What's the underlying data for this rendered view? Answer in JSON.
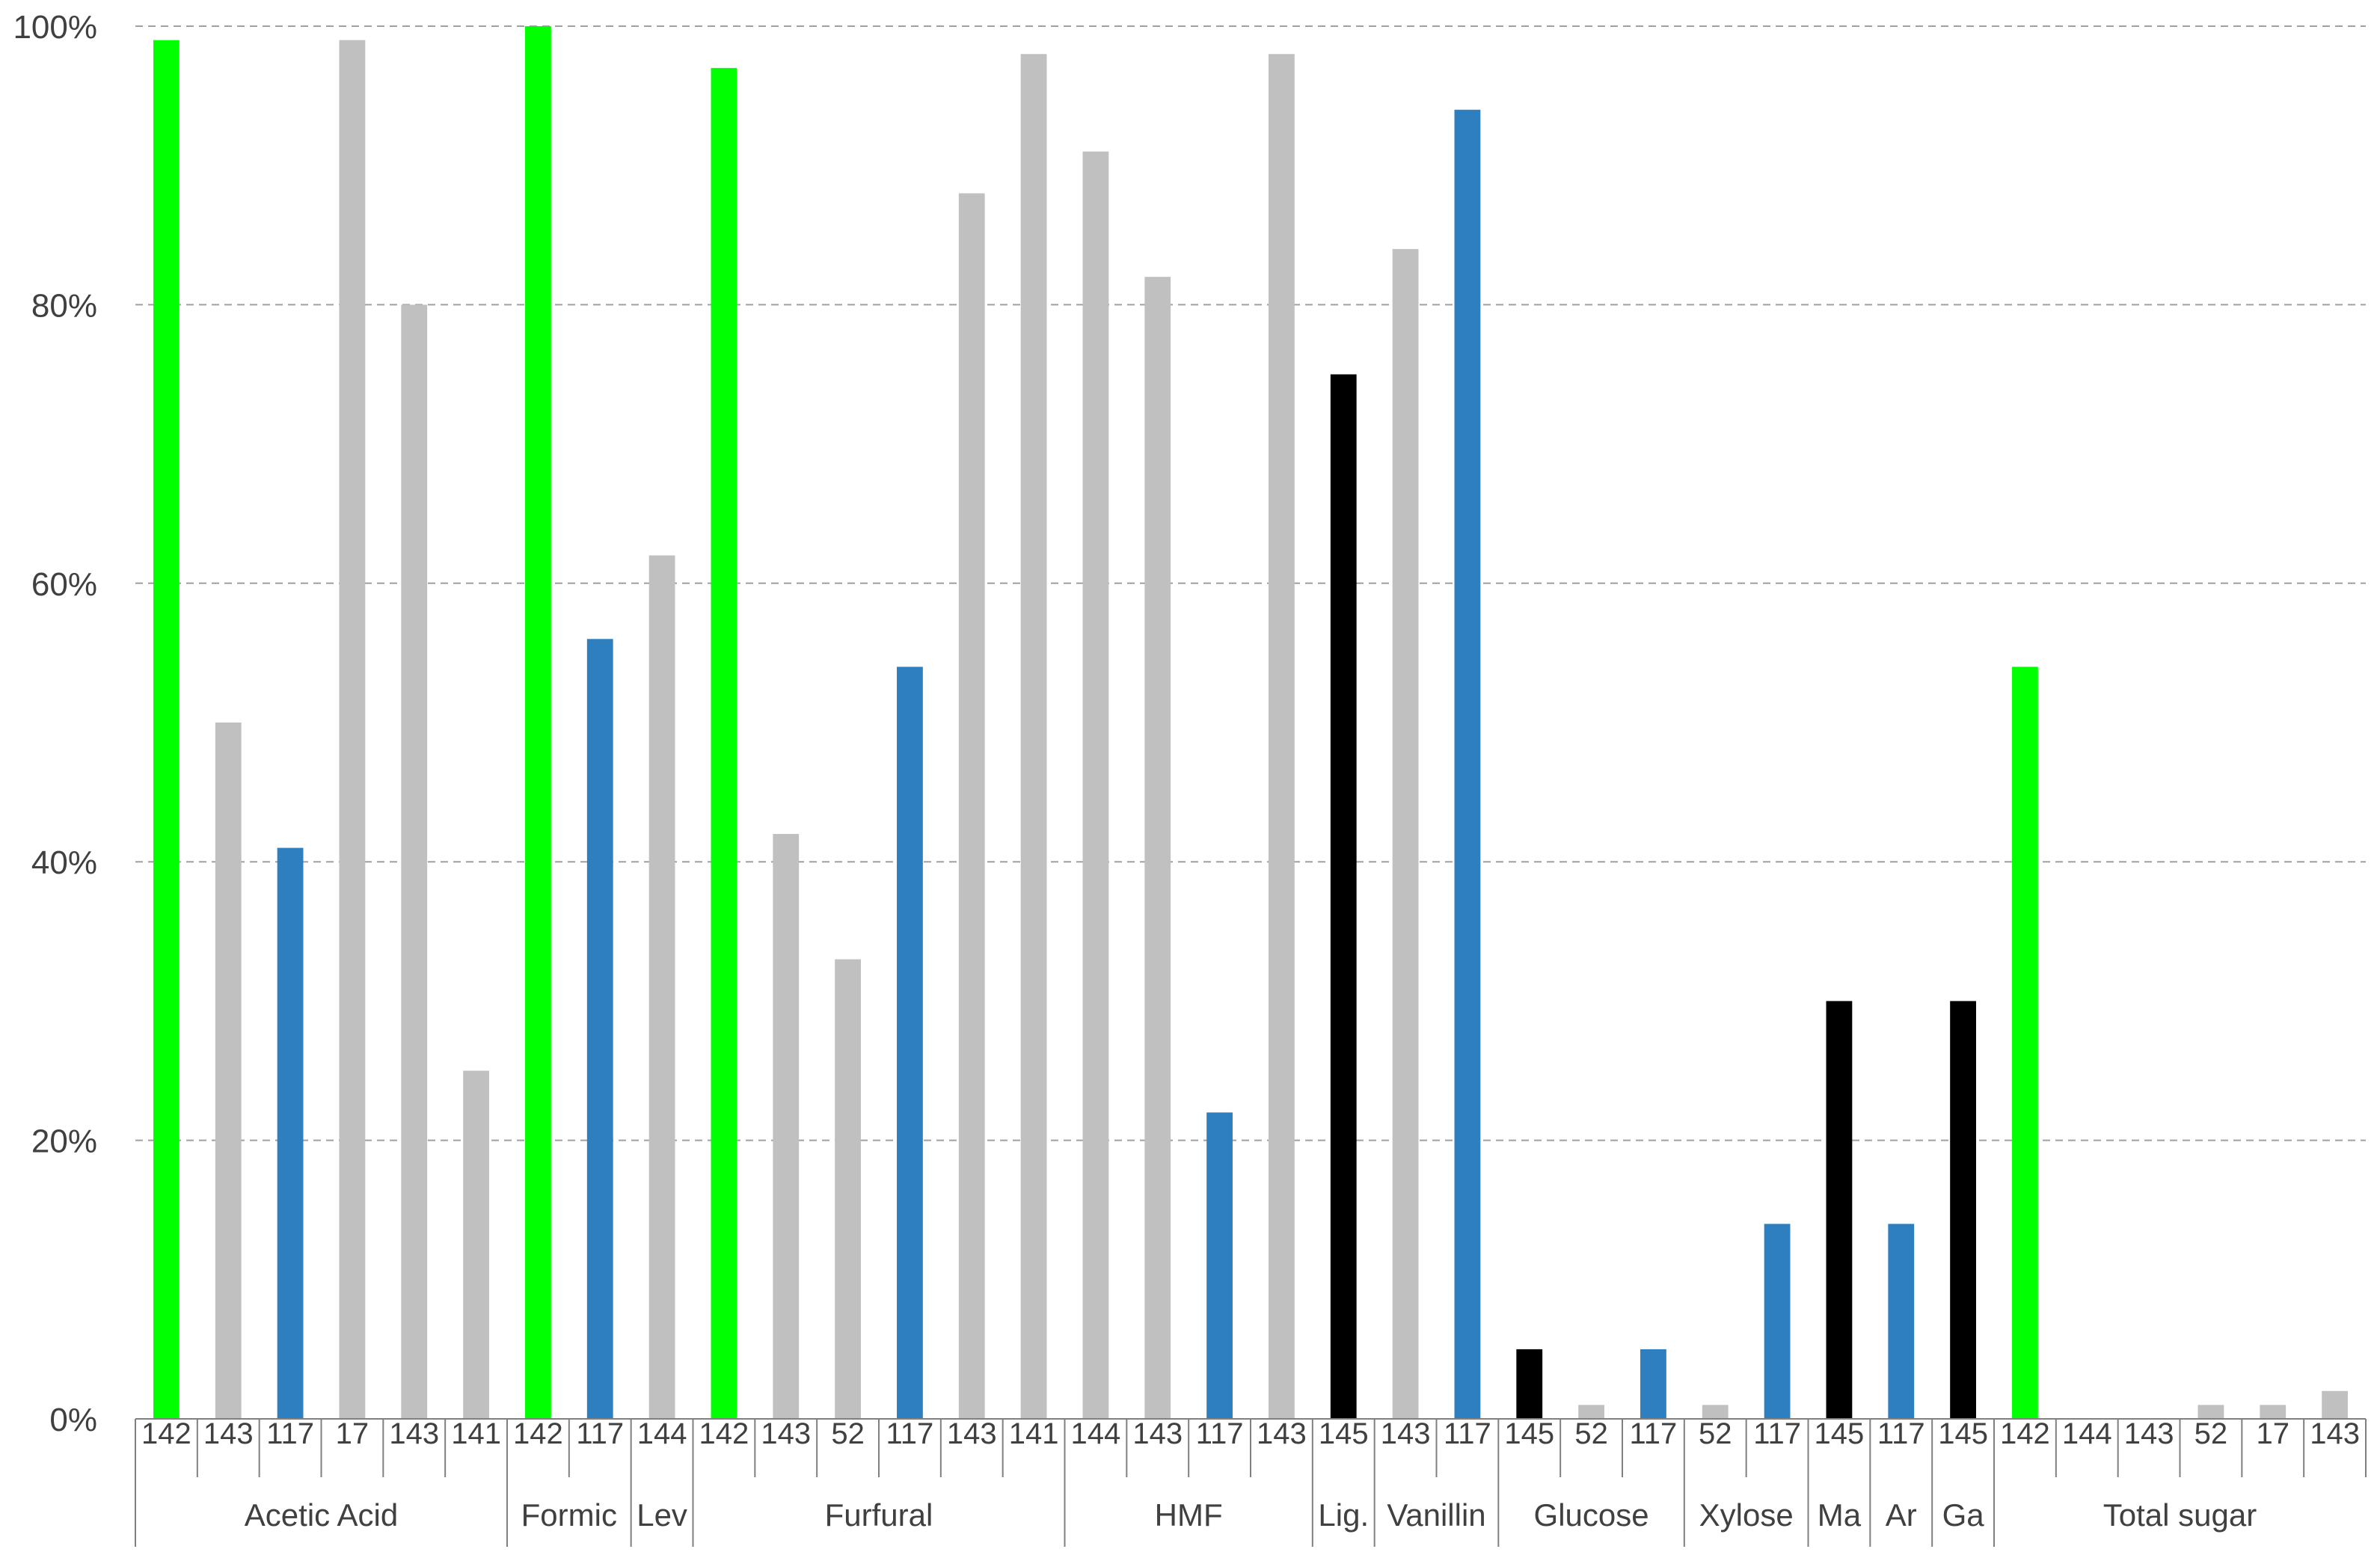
{
  "chart_data": {
    "type": "bar",
    "ylim": [
      0,
      100
    ],
    "y_ticks": [
      {
        "value": 0,
        "label": "0%"
      },
      {
        "value": 20,
        "label": "20%"
      },
      {
        "value": 40,
        "label": "40%"
      },
      {
        "value": 60,
        "label": "60%"
      },
      {
        "value": 80,
        "label": "80%"
      },
      {
        "value": 100,
        "label": "100%"
      }
    ],
    "grid": true,
    "colors": {
      "green": "#00ff00",
      "gray": "#c0c0c0",
      "blue": "#2e7fc0",
      "black": "#000000",
      "gridline": "#a0a0a0",
      "axis": "#808080"
    },
    "groups": [
      {
        "label": "Acetic Acid",
        "bars": [
          {
            "category": "142",
            "value": 99,
            "color": "green"
          },
          {
            "category": "143",
            "value": 50,
            "color": "gray"
          },
          {
            "category": "117",
            "value": 41,
            "color": "blue"
          },
          {
            "category": "17",
            "value": 99,
            "color": "gray"
          },
          {
            "category": "143",
            "value": 80,
            "color": "gray"
          },
          {
            "category": "141",
            "value": 25,
            "color": "gray"
          }
        ]
      },
      {
        "label": "Formic",
        "bars": [
          {
            "category": "142",
            "value": 100,
            "color": "green"
          },
          {
            "category": "117",
            "value": 56,
            "color": "blue"
          }
        ]
      },
      {
        "label": "Lev",
        "bars": [
          {
            "category": "144",
            "value": 62,
            "color": "gray"
          }
        ]
      },
      {
        "label": "Furfural",
        "bars": [
          {
            "category": "142",
            "value": 97,
            "color": "green"
          },
          {
            "category": "143",
            "value": 42,
            "color": "gray"
          },
          {
            "category": "52",
            "value": 33,
            "color": "gray"
          },
          {
            "category": "117",
            "value": 54,
            "color": "blue"
          },
          {
            "category": "143",
            "value": 88,
            "color": "gray"
          },
          {
            "category": "141",
            "value": 98,
            "color": "gray"
          }
        ]
      },
      {
        "label": "HMF",
        "bars": [
          {
            "category": "144",
            "value": 91,
            "color": "gray"
          },
          {
            "category": "143",
            "value": 82,
            "color": "gray"
          },
          {
            "category": "117",
            "value": 22,
            "color": "blue"
          },
          {
            "category": "143",
            "value": 98,
            "color": "gray"
          }
        ]
      },
      {
        "label": "Lig.",
        "bars": [
          {
            "category": "145",
            "value": 75,
            "color": "black"
          }
        ]
      },
      {
        "label": "Vanillin",
        "bars": [
          {
            "category": "143",
            "value": 84,
            "color": "gray"
          },
          {
            "category": "117",
            "value": 94,
            "color": "blue"
          }
        ]
      },
      {
        "label": "Glucose",
        "bars": [
          {
            "category": "145",
            "value": 5,
            "color": "black"
          },
          {
            "category": "52",
            "value": 1,
            "color": "gray"
          },
          {
            "category": "117",
            "value": 5,
            "color": "blue"
          }
        ]
      },
      {
        "label": "Xylose",
        "bars": [
          {
            "category": "52",
            "value": 1,
            "color": "gray"
          },
          {
            "category": "117",
            "value": 14,
            "color": "blue"
          }
        ]
      },
      {
        "label": "Ma",
        "bars": [
          {
            "category": "145",
            "value": 30,
            "color": "black"
          }
        ]
      },
      {
        "label": "Ar",
        "bars": [
          {
            "category": "117",
            "value": 14,
            "color": "blue"
          }
        ]
      },
      {
        "label": "Ga",
        "bars": [
          {
            "category": "145",
            "value": 30,
            "color": "black"
          }
        ]
      },
      {
        "label": "Total sugar",
        "bars": [
          {
            "category": "142",
            "value": 54,
            "color": "green"
          },
          {
            "category": "144",
            "value": 0,
            "color": "gray"
          },
          {
            "category": "143",
            "value": 0,
            "color": "gray"
          },
          {
            "category": "52",
            "value": 1,
            "color": "gray"
          },
          {
            "category": "17",
            "value": 1,
            "color": "gray"
          },
          {
            "category": "143",
            "value": 2,
            "color": "gray"
          }
        ]
      }
    ]
  }
}
